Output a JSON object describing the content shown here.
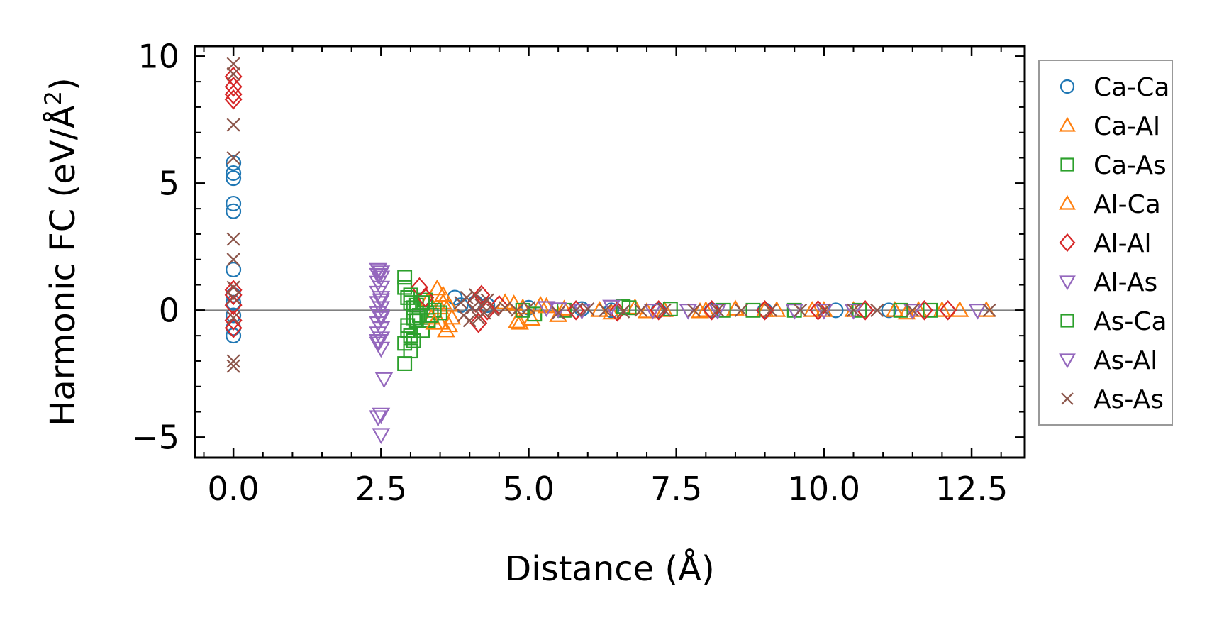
{
  "chart_data": {
    "type": "scatter",
    "title": "",
    "xlabel": "Distance (Å)",
    "ylabel_text": "Harmonic FC (eV/Å",
    "ylabel_superscript": "2",
    "ylabel_close": ")",
    "xlim": [
      -0.65,
      13.4
    ],
    "ylim": [
      -5.8,
      10.4
    ],
    "xticks": [
      0.0,
      2.5,
      5.0,
      7.5,
      10.0,
      12.5
    ],
    "xtick_labels": [
      "0.0",
      "2.5",
      "5.0",
      "7.5",
      "10.0",
      "12.5"
    ],
    "yticks": [
      -5,
      0,
      5,
      10
    ],
    "ytick_labels": [
      "−5",
      "0",
      "5",
      "10"
    ],
    "grid": false,
    "zero_line": true,
    "legend_position": "outside-right",
    "series": [
      {
        "name": "Ca-Ca",
        "marker": "circle",
        "color": "#1f77b4",
        "points": [
          [
            0,
            5.8
          ],
          [
            0,
            5.4
          ],
          [
            0,
            5.2
          ],
          [
            0,
            4.2
          ],
          [
            0,
            3.9
          ],
          [
            0,
            1.6
          ],
          [
            0,
            0.6
          ],
          [
            0,
            0.3
          ],
          [
            0,
            -0.2
          ],
          [
            0,
            -0.7
          ],
          [
            0,
            -1.0
          ],
          [
            3.75,
            0.5
          ],
          [
            3.85,
            0.2
          ],
          [
            4.1,
            0.3
          ],
          [
            4.3,
            0.2
          ],
          [
            5.0,
            0.1
          ],
          [
            5.9,
            0.05
          ],
          [
            6.4,
            0.0
          ],
          [
            7.2,
            0.0
          ],
          [
            8.1,
            0.0
          ],
          [
            9.0,
            0.0
          ],
          [
            10.2,
            0.0
          ],
          [
            11.1,
            0.0
          ]
        ]
      },
      {
        "name": "Ca-Al",
        "marker": "triangle-up",
        "color": "#ff7f0e",
        "points": [
          [
            3.3,
            0.4
          ],
          [
            3.35,
            -0.3
          ],
          [
            3.45,
            0.85
          ],
          [
            3.5,
            0.1
          ],
          [
            3.5,
            -0.5
          ],
          [
            3.55,
            0.3
          ],
          [
            3.6,
            -0.8
          ],
          [
            3.65,
            0.2
          ],
          [
            3.7,
            -0.3
          ],
          [
            4.75,
            0.25
          ],
          [
            4.8,
            -0.45
          ],
          [
            4.9,
            0.1
          ],
          [
            5.05,
            -0.35
          ],
          [
            5.2,
            0.2
          ],
          [
            5.5,
            -0.2
          ],
          [
            5.6,
            0.05
          ],
          [
            6.4,
            -0.1
          ],
          [
            6.8,
            0.1
          ],
          [
            7.3,
            0.0
          ],
          [
            7.9,
            -0.05
          ],
          [
            8.5,
            0.05
          ],
          [
            9.2,
            0.0
          ],
          [
            9.8,
            0.0
          ],
          [
            10.5,
            0.0
          ],
          [
            11.4,
            -0.1
          ],
          [
            11.6,
            0.0
          ],
          [
            12.0,
            0.0
          ],
          [
            12.75,
            0.0
          ]
        ]
      },
      {
        "name": "Ca-As",
        "marker": "square",
        "color": "#2ca02c",
        "points": [
          [
            2.9,
            1.3
          ],
          [
            2.9,
            0.9
          ],
          [
            2.9,
            -1.3
          ],
          [
            2.9,
            -2.1
          ],
          [
            2.95,
            0.5
          ],
          [
            2.95,
            -0.6
          ],
          [
            3.0,
            0.3
          ],
          [
            3.0,
            -1.0
          ],
          [
            3.0,
            -1.6
          ],
          [
            3.05,
            0.1
          ],
          [
            3.05,
            -0.3
          ],
          [
            3.1,
            0.2
          ],
          [
            3.15,
            -0.2
          ],
          [
            3.2,
            -0.8
          ],
          [
            3.25,
            0.4
          ],
          [
            3.3,
            -0.4
          ],
          [
            3.4,
            0.0
          ],
          [
            3.5,
            -0.1
          ],
          [
            5.1,
            -0.15
          ],
          [
            5.6,
            0.0
          ],
          [
            6.6,
            0.15
          ],
          [
            7.4,
            0.05
          ],
          [
            8.3,
            0.0
          ],
          [
            9.5,
            0.0
          ],
          [
            10.6,
            0.0
          ],
          [
            11.8,
            0.0
          ]
        ]
      },
      {
        "name": "Al-Ca",
        "marker": "triangle-up",
        "color": "#ff7f0e",
        "points": [
          [
            3.4,
            -0.5
          ],
          [
            3.55,
            0.6
          ],
          [
            3.65,
            -0.6
          ],
          [
            4.6,
            0.3
          ],
          [
            4.85,
            -0.5
          ],
          [
            5.3,
            0.15
          ],
          [
            6.2,
            0.0
          ],
          [
            7.0,
            -0.05
          ],
          [
            8.0,
            0.0
          ],
          [
            9.0,
            0.0
          ],
          [
            10.0,
            0.0
          ],
          [
            11.2,
            0.0
          ],
          [
            12.3,
            0.0
          ]
        ]
      },
      {
        "name": "Al-Al",
        "marker": "diamond",
        "color": "#d62728",
        "points": [
          [
            0,
            9.2
          ],
          [
            0,
            8.8
          ],
          [
            0,
            8.5
          ],
          [
            0,
            8.3
          ],
          [
            0,
            0.8
          ],
          [
            0,
            0.6
          ],
          [
            0,
            0.2
          ],
          [
            0,
            -0.4
          ],
          [
            0,
            -0.7
          ],
          [
            3.15,
            0.9
          ],
          [
            3.25,
            0.5
          ],
          [
            4.1,
            0.3
          ],
          [
            4.15,
            -0.5
          ],
          [
            4.2,
            0.6
          ],
          [
            4.3,
            0.0
          ],
          [
            4.5,
            0.2
          ],
          [
            5.8,
            0.0
          ],
          [
            6.5,
            -0.05
          ],
          [
            7.2,
            0.0
          ],
          [
            8.1,
            0.0
          ],
          [
            9.0,
            0.0
          ],
          [
            9.9,
            0.0
          ],
          [
            10.7,
            0.0
          ],
          [
            11.7,
            0.0
          ],
          [
            12.1,
            0.0
          ]
        ]
      },
      {
        "name": "Al-As",
        "marker": "triangle-down",
        "color": "#9467bd",
        "points": [
          [
            2.45,
            1.6
          ],
          [
            2.5,
            1.5
          ],
          [
            2.5,
            1.3
          ],
          [
            2.45,
            1.1
          ],
          [
            2.5,
            0.9
          ],
          [
            2.45,
            0.7
          ],
          [
            2.5,
            0.5
          ],
          [
            2.45,
            0.3
          ],
          [
            2.5,
            0.1
          ],
          [
            2.45,
            -0.1
          ],
          [
            2.5,
            -0.3
          ],
          [
            2.45,
            -0.5
          ],
          [
            2.5,
            -0.7
          ],
          [
            2.45,
            -0.9
          ],
          [
            2.5,
            -1.1
          ],
          [
            2.45,
            -1.3
          ],
          [
            2.5,
            -1.5
          ],
          [
            2.55,
            -2.7
          ],
          [
            2.5,
            -4.1
          ],
          [
            2.45,
            -4.2
          ],
          [
            5.3,
            0.1
          ],
          [
            5.5,
            0.05
          ],
          [
            6.4,
            0.15
          ],
          [
            7.1,
            0.0
          ],
          [
            8.2,
            0.0
          ],
          [
            9.5,
            0.0
          ],
          [
            10.5,
            0.0
          ],
          [
            11.5,
            0.0
          ],
          [
            12.6,
            0.0
          ]
        ]
      },
      {
        "name": "As-Ca",
        "marker": "square",
        "color": "#2ca02c",
        "points": [
          [
            2.95,
            -0.8
          ],
          [
            3.0,
            0.6
          ],
          [
            3.05,
            -1.2
          ],
          [
            3.1,
            -0.4
          ],
          [
            3.2,
            0.3
          ],
          [
            3.35,
            -0.2
          ],
          [
            4.9,
            0.0
          ],
          [
            6.7,
            0.1
          ],
          [
            8.8,
            0.0
          ],
          [
            11.3,
            0.0
          ]
        ]
      },
      {
        "name": "As-Al",
        "marker": "triangle-down",
        "color": "#9467bd",
        "points": [
          [
            2.45,
            1.4
          ],
          [
            2.5,
            0.4
          ],
          [
            2.5,
            -0.2
          ],
          [
            2.5,
            -4.9
          ],
          [
            2.45,
            -1.2
          ],
          [
            5.9,
            0.0
          ],
          [
            7.7,
            0.0
          ],
          [
            10.0,
            0.0
          ]
        ]
      },
      {
        "name": "As-As",
        "marker": "x",
        "color": "#8c564b",
        "points": [
          [
            0,
            9.7
          ],
          [
            0,
            9.3
          ],
          [
            0,
            7.3
          ],
          [
            0,
            6.0
          ],
          [
            0,
            2.8
          ],
          [
            0,
            2.0
          ],
          [
            0,
            0.9
          ],
          [
            0,
            0.5
          ],
          [
            0,
            -0.3
          ],
          [
            0,
            -2.0
          ],
          [
            0,
            -2.2
          ],
          [
            3.85,
            0.3
          ],
          [
            3.9,
            -0.2
          ],
          [
            3.95,
            0.5
          ],
          [
            4.0,
            -0.4
          ],
          [
            4.05,
            0.1
          ],
          [
            4.1,
            0.6
          ],
          [
            4.15,
            -0.3
          ],
          [
            4.2,
            0.2
          ],
          [
            4.25,
            -0.1
          ],
          [
            4.3,
            0.4
          ],
          [
            4.4,
            0.0
          ],
          [
            4.6,
            0.1
          ],
          [
            4.8,
            0.0
          ],
          [
            5.0,
            0.1
          ],
          [
            5.5,
            -0.1
          ],
          [
            5.8,
            0.0
          ],
          [
            6.0,
            0.05
          ],
          [
            6.3,
            0.0
          ],
          [
            6.6,
            -0.05
          ],
          [
            6.9,
            0.0
          ],
          [
            7.3,
            0.0
          ],
          [
            7.8,
            0.0
          ],
          [
            8.2,
            0.0
          ],
          [
            8.6,
            0.0
          ],
          [
            9.1,
            0.0
          ],
          [
            9.6,
            0.0
          ],
          [
            10.0,
            0.0
          ],
          [
            10.5,
            0.0
          ],
          [
            10.9,
            0.0
          ],
          [
            11.5,
            0.0
          ],
          [
            12.8,
            0.0
          ]
        ]
      }
    ]
  }
}
